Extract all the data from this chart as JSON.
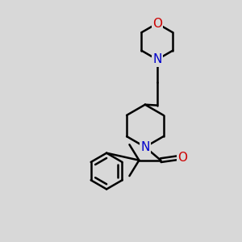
{
  "bg_color": "#d8d8d8",
  "bond_color": "#000000",
  "N_color": "#0000cc",
  "O_color": "#cc0000",
  "bond_width": 1.8,
  "font_size": 11,
  "figsize": [
    3.0,
    3.0
  ],
  "dpi": 100,
  "xlim": [
    0,
    10
  ],
  "ylim": [
    0,
    10
  ]
}
